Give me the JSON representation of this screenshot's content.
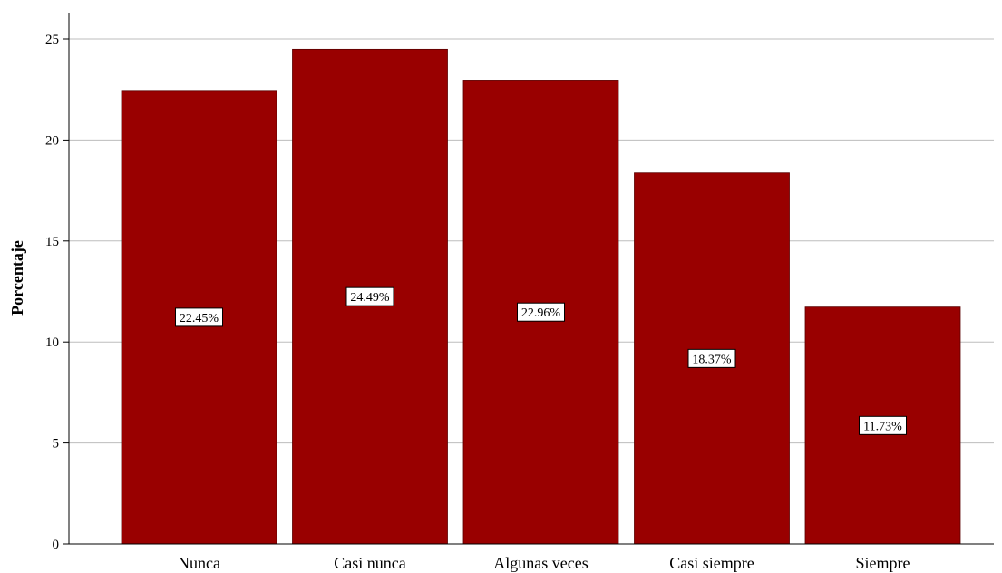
{
  "chart_data": {
    "type": "bar",
    "categories": [
      "Nunca",
      "Casi nunca",
      "Algunas veces",
      "Casi siempre",
      "Siempre"
    ],
    "values": [
      22.45,
      24.49,
      22.96,
      18.37,
      11.73
    ],
    "data_labels": [
      "22.45%",
      "24.49%",
      "22.96%",
      "18.37%",
      "11.73%"
    ],
    "title": "",
    "xlabel": "",
    "ylabel": "Porcentaje",
    "ylim": [
      0,
      25
    ],
    "yticks": [
      0,
      5,
      10,
      15,
      20,
      25
    ],
    "grid": true,
    "bar_color": "#990000",
    "label_position": "center"
  }
}
